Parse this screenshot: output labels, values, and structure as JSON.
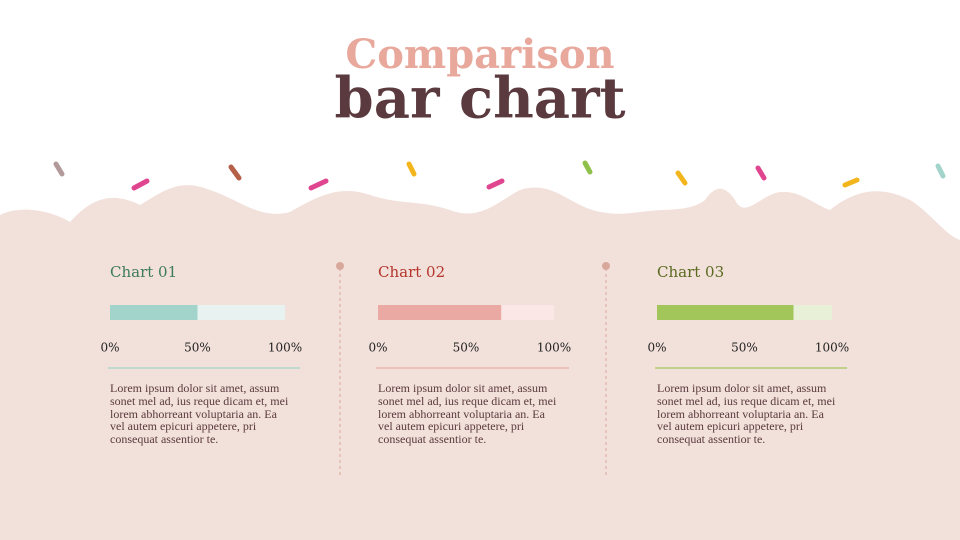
{
  "header": {
    "title_top": "Comparison",
    "title_bottom": "bar chart"
  },
  "chart_data": [
    {
      "type": "bar",
      "title": "Chart 01",
      "values": [
        50
      ],
      "color": "#a3d4cb",
      "track_color": "#e8f3f1",
      "title_color": "#3d7a5e",
      "xlim": [
        0,
        100
      ],
      "xticks": [
        {
          "value": 0,
          "label": "0%"
        },
        {
          "value": 50,
          "label": "50%"
        },
        {
          "value": 100,
          "label": "100%"
        }
      ],
      "description": "Lorem ipsum dolor sit amet, assum sonet mel ad, ius reque dicam et, mei lorem abhorreant voluptaria an. Ea vel autem epicuri appetere, pri consequat assentior te."
    },
    {
      "type": "bar",
      "title": "Chart 02",
      "values": [
        70
      ],
      "color": "#eba9a3",
      "track_color": "#fbe8e6",
      "title_color": "#b5352a",
      "xlim": [
        0,
        100
      ],
      "xticks": [
        {
          "value": 0,
          "label": "0%"
        },
        {
          "value": 50,
          "label": "50%"
        },
        {
          "value": 100,
          "label": "100%"
        }
      ],
      "description": "Lorem ipsum dolor sit amet, assum sonet mel ad, ius reque dicam et, mei lorem abhorreant voluptaria an. Ea vel autem epicuri appetere, pri consequat assentior te."
    },
    {
      "type": "bar",
      "title": "Chart 03",
      "values": [
        78
      ],
      "color": "#a3c65a",
      "track_color": "#e8f0d8",
      "title_color": "#5a6a1e",
      "xlim": [
        0,
        100
      ],
      "xticks": [
        {
          "value": 0,
          "label": "0%"
        },
        {
          "value": 50,
          "label": "50%"
        },
        {
          "value": 100,
          "label": "100%"
        }
      ],
      "description": "Lorem ipsum dolor sit amet, assum sonet mel ad, ius reque dicam et, mei lorem abhorreant voluptaria an. Ea vel autem epicuri appetere, pri consequat assentior te."
    }
  ]
}
